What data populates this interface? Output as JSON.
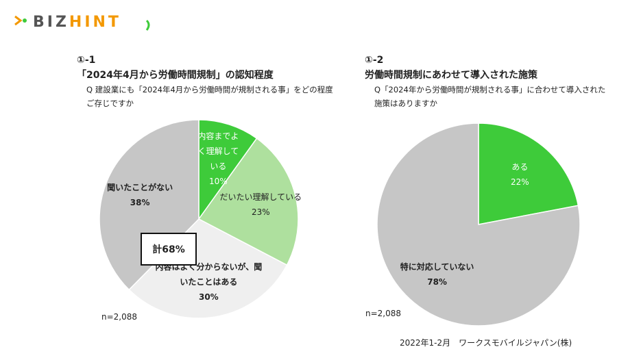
{
  "logo": {
    "part1": "BIZ",
    "part2": "HINT"
  },
  "chart_data": [
    {
      "type": "pie",
      "number": "①-1",
      "title": "「2024年4月から労働時間規制」の認知程度",
      "subtitle": "Q 建設業にも「2024年4月から労働時間が規制される事」をどの程度ご存じですか",
      "categories": [
        "内容までよく理解している",
        "だいたい理解している",
        "内容はよく分からないが、聞いたことはある",
        "聞いたことがない"
      ],
      "values": [
        10,
        23,
        30,
        38
      ],
      "value_labels": [
        "10%",
        "23%",
        "30%",
        "38%"
      ],
      "colors": [
        "#3ecb3a",
        "#aee09e",
        "#efefef",
        "#c6c6c6"
      ],
      "annotations": [
        "計68%",
        "n=2,088"
      ]
    },
    {
      "type": "pie",
      "number": "①-2",
      "title": "労働時間規制にあわせて導入された施策",
      "subtitle": "Q「2024年から労働時間が規制される事」に合わせて導入された施策はありますか",
      "categories": [
        "ある",
        "特に対応していない"
      ],
      "values": [
        22,
        78
      ],
      "value_labels": [
        "22%",
        "78%"
      ],
      "colors": [
        "#3ecb3a",
        "#c6c6c6"
      ],
      "annotations": [
        "n=2,088"
      ]
    }
  ],
  "source": "2022年1-2月　ワークスモバイルジャパン(株)"
}
